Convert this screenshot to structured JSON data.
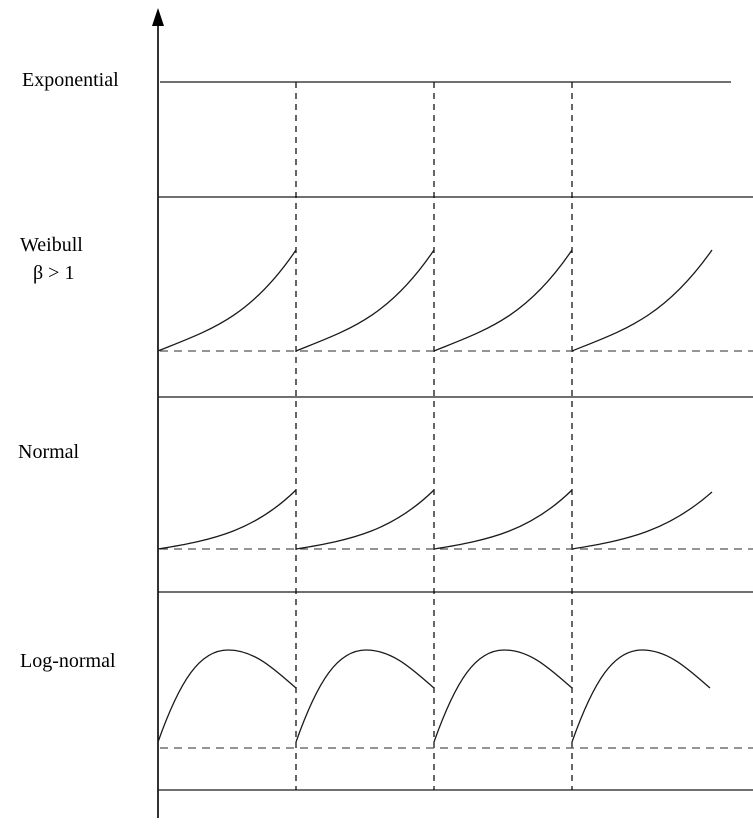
{
  "diagram": {
    "rows": [
      {
        "id": "exponential",
        "label_lines": [
          "Exponential"
        ],
        "hazard_shape": "constant"
      },
      {
        "id": "weibull",
        "label_lines": [
          "Weibull",
          "β > 1"
        ],
        "hazard_shape": "increasing"
      },
      {
        "id": "normal",
        "label_lines": [
          "Normal"
        ],
        "hazard_shape": "increasing"
      },
      {
        "id": "log-normal",
        "label_lines": [
          "Log-normal"
        ],
        "hazard_shape": "rise-then-fall"
      }
    ],
    "renewal_cycles": 4,
    "colors": {
      "line": "#1a1a1a",
      "baseline_dash": "#555555",
      "background": "#ffffff"
    }
  }
}
